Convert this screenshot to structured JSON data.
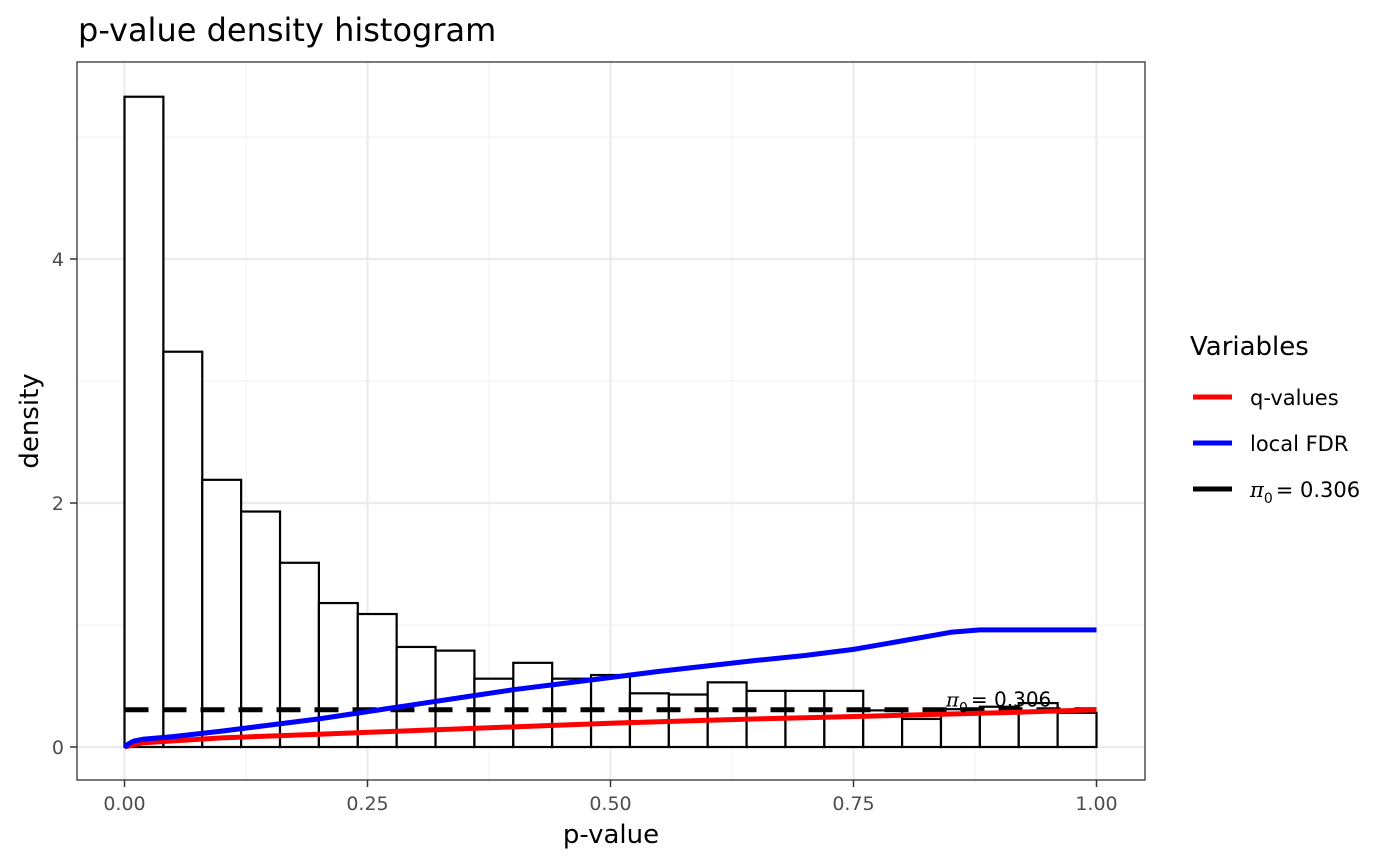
{
  "chart_data": {
    "type": "bar",
    "title": "p-value density histogram",
    "xlabel": "p-value",
    "ylabel": "density",
    "xlim": [
      -0.1,
      2.095
    ],
    "ylim": [
      -0.26,
      5.6
    ],
    "x_ticks": [
      "0.00",
      "0.25",
      "0.50",
      "0.75",
      "1.00"
    ],
    "x_tick_values": [
      0,
      0.25,
      0.5,
      0.75,
      1.0
    ],
    "y_ticks": [
      "0",
      "2",
      "4"
    ],
    "y_tick_values": [
      0,
      2,
      4
    ],
    "grid": true,
    "bins": {
      "width": 0.04,
      "left_edges": [
        0.0,
        0.04,
        0.08,
        0.12,
        0.16,
        0.2,
        0.24,
        0.28,
        0.32,
        0.36,
        0.4,
        0.44,
        0.48,
        0.52,
        0.56,
        0.6,
        0.64,
        0.68,
        0.72,
        0.76,
        0.8,
        0.84,
        0.88,
        0.92,
        0.96
      ],
      "density": [
        5.33,
        3.24,
        2.19,
        1.93,
        1.51,
        1.18,
        1.09,
        0.82,
        0.79,
        0.56,
        0.69,
        0.56,
        0.59,
        0.44,
        0.43,
        0.53,
        0.46,
        0.46,
        0.46,
        0.3,
        0.23,
        0.31,
        0.33,
        0.36,
        0.28
      ]
    },
    "series": [
      {
        "name": "q-values",
        "color": "#ff0000",
        "style": "solid",
        "x": [
          0.0,
          0.01,
          0.02,
          0.05,
          0.1,
          0.2,
          0.3,
          0.4,
          0.5,
          0.6,
          0.7,
          0.8,
          0.9,
          1.0
        ],
        "y": [
          0.0,
          0.02,
          0.035,
          0.05,
          0.075,
          0.105,
          0.135,
          0.165,
          0.195,
          0.22,
          0.24,
          0.26,
          0.28,
          0.306
        ]
      },
      {
        "name": "local FDR",
        "color": "#0000ff",
        "style": "solid",
        "x": [
          0.0,
          0.005,
          0.01,
          0.02,
          0.05,
          0.1,
          0.15,
          0.2,
          0.25,
          0.3,
          0.35,
          0.4,
          0.45,
          0.5,
          0.55,
          0.6,
          0.65,
          0.7,
          0.75,
          0.8,
          0.85,
          0.88,
          0.9,
          0.95,
          1.0
        ],
        "y": [
          0.0,
          0.03,
          0.05,
          0.065,
          0.085,
          0.13,
          0.18,
          0.23,
          0.29,
          0.35,
          0.41,
          0.47,
          0.52,
          0.57,
          0.62,
          0.665,
          0.71,
          0.75,
          0.8,
          0.87,
          0.94,
          0.96,
          0.96,
          0.96,
          0.96
        ]
      },
      {
        "name": "π0 = 0.306",
        "color": "#000000",
        "style": "dashed",
        "x": [
          0.0,
          1.0
        ],
        "y": [
          0.306,
          0.306
        ]
      }
    ],
    "legend": {
      "title": "Variables",
      "placement": "right",
      "entries": [
        {
          "label": "q-values",
          "color": "#ff0000",
          "dashed": false
        },
        {
          "label": "local FDR",
          "color": "#0000ff",
          "dashed": false
        },
        {
          "label": "= 0.306",
          "symbol": "π",
          "subscript": "0",
          "color": "#000000",
          "dashed": true
        }
      ]
    },
    "annotations": [
      {
        "symbol": "π",
        "subscript": "0",
        "text": "= 0.306",
        "x": 0.845,
        "y": 0.3
      }
    ]
  }
}
